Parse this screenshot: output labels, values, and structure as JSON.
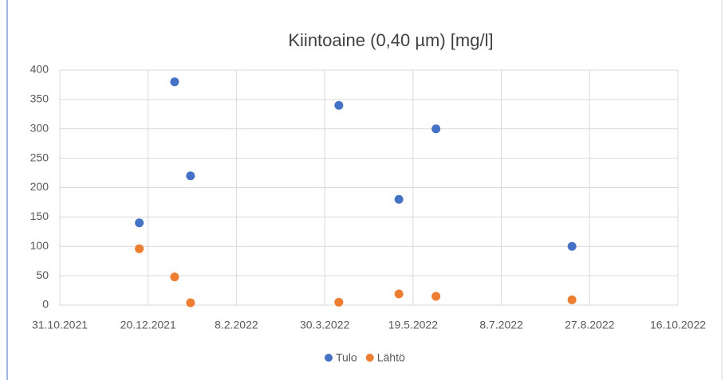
{
  "chart_data": {
    "type": "scatter",
    "title": "Kiintoaine (0,40 µm) [mg/l]",
    "series": [
      {
        "name": "Tulo",
        "color": "#4472c4",
        "x": [
          "15.12.2021",
          "4.1.2022",
          "13.1.2022",
          "7.4.2022",
          "11.5.2022",
          "1.6.2022",
          "17.8.2022"
        ],
        "values": [
          140,
          380,
          220,
          340,
          180,
          300,
          100
        ]
      },
      {
        "name": "Lähtö",
        "color": "#ed7d31",
        "x": [
          "15.12.2021",
          "4.1.2022",
          "13.1.2022",
          "7.4.2022",
          "11.5.2022",
          "1.6.2022",
          "17.8.2022"
        ],
        "values": [
          96,
          48,
          4,
          5,
          19,
          15,
          9
        ]
      }
    ],
    "xlim": [
      "31.10.2021",
      "16.10.2022"
    ],
    "xticks": [
      "31.10.2021",
      "20.12.2021",
      "8.2.2022",
      "30.3.2022",
      "19.5.2022",
      "8.7.2022",
      "27.8.2022",
      "16.10.2022"
    ],
    "ylim": [
      0,
      400
    ],
    "yticks": [
      0,
      50,
      100,
      150,
      200,
      250,
      300,
      350,
      400
    ],
    "grid": true,
    "legend": "bottom"
  }
}
